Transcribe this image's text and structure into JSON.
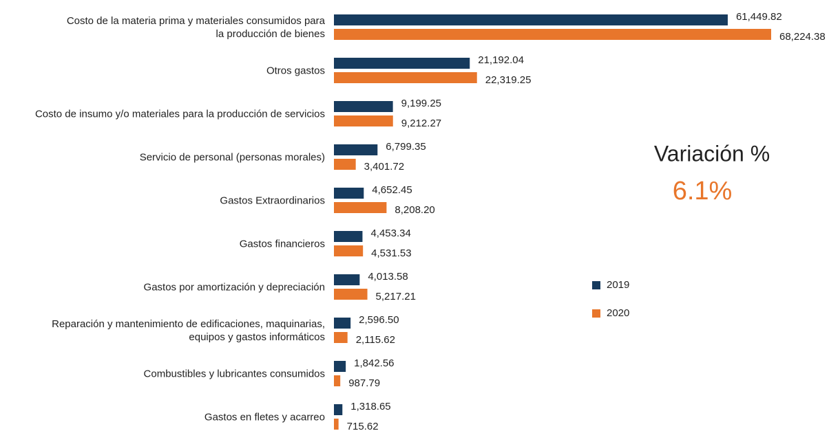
{
  "chart_data": {
    "type": "bar",
    "orientation": "horizontal",
    "categories": [
      "Costo de la materia prima y materiales consumidos para\nla producción de bienes",
      "Otros gastos",
      "Costo de insumo y/o materiales para la producción de servicios",
      "Servicio de personal (personas morales)",
      "Gastos Extraordinarios",
      "Gastos financieros",
      "Gastos por amortización y depreciación",
      "Reparación y mantenimiento de edificaciones, maquinarias,\nequipos y gastos informáticos",
      "Combustibles y lubricantes consumidos",
      "Gastos en fletes y acarreo"
    ],
    "series": [
      {
        "name": "2019",
        "color": "#173b5e",
        "values": [
          61449.82,
          21192.04,
          9199.25,
          6799.35,
          4652.45,
          4453.34,
          4013.58,
          2596.5,
          1842.56,
          1318.65
        ],
        "value_labels": [
          "61,449.82",
          "21,192.04",
          "9,199.25",
          "6,799.35",
          "4,652.45",
          "4,453.34",
          "4,013.58",
          "2,596.50",
          "1,842.56",
          "1,318.65"
        ]
      },
      {
        "name": "2020",
        "color": "#e8762b",
        "values": [
          68224.38,
          22319.25,
          9212.27,
          3401.72,
          8208.2,
          4531.53,
          5217.21,
          2115.62,
          987.79,
          715.62
        ],
        "value_labels": [
          "68,224.38",
          "22,319.25",
          "9,212.27",
          "3,401.72",
          "8,208.20",
          "4,531.53",
          "5,217.21",
          "2,115.62",
          "987.79",
          "715.62"
        ]
      }
    ],
    "annotations": [
      {
        "text": "Variación %",
        "color": "#222222"
      },
      {
        "text": "6.1%",
        "color": "#e8762b"
      }
    ],
    "legend": "right"
  }
}
